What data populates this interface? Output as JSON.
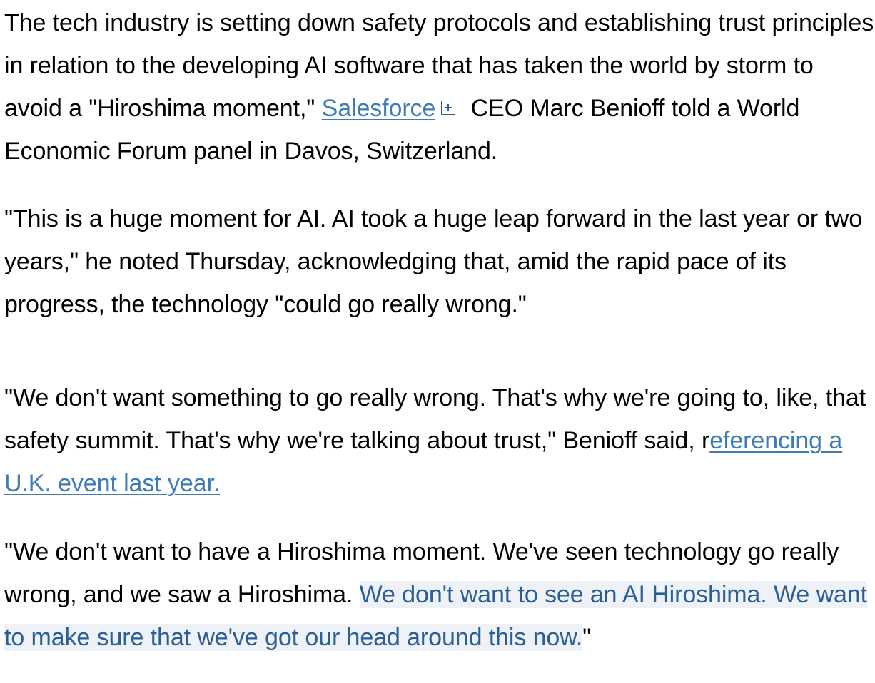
{
  "article": {
    "p1": {
      "before_link": "The tech industry is setting down safety protocols and establishing trust principles in relation to the developing AI software that has taken the world by storm to avoid a \"Hiroshima moment,\" ",
      "link": "Salesforce",
      "after_link": " CEO Marc Benioff told a World Economic Forum panel in Davos, Switzerland."
    },
    "p2": {
      "text": "\"This is a huge moment for AI. AI took a huge leap forward in the last year or two years,\" he noted Thursday, acknowledging that, amid the rapid pace of its progress, the technology \"could go really wrong.\""
    },
    "p3": {
      "before_link": "\"We don't want something to go really wrong. That's why we're going to, like, that safety summit. That's why we're talking about trust,\" Benioff said, r",
      "link": "eferencing a U.K. event last year."
    },
    "p4": {
      "before_highlight": "\"We don't want to have a Hiroshima moment. We've seen technology go really wrong, and we saw a Hiroshima. ",
      "highlight": "We don't want to see an AI Hiroshima. We want to make sure that we've got our head around this now.",
      "after_highlight": "\""
    }
  },
  "icons": {
    "expand": "plus-box-icon"
  },
  "colors": {
    "text": "#000000",
    "link": "#3f7cb5",
    "highlight_text": "#2a5f96",
    "highlight_bg": "#eef1f5"
  }
}
